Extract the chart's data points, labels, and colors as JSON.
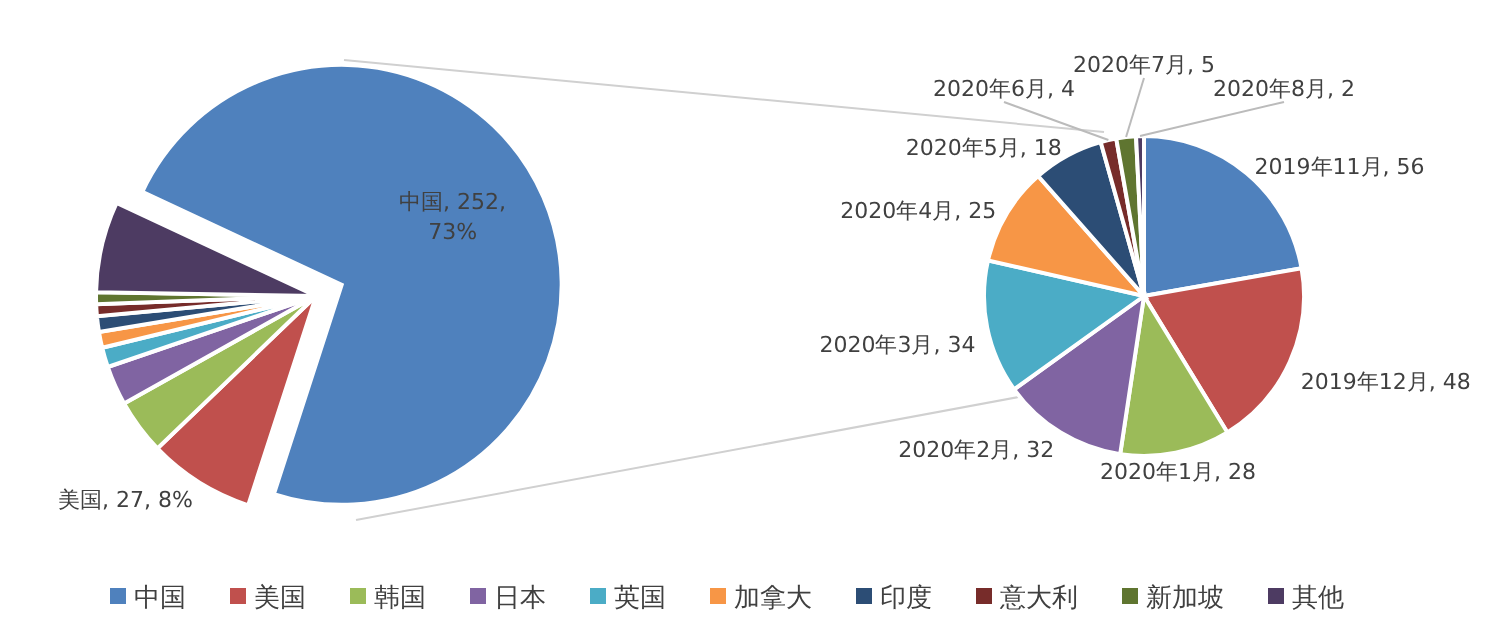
{
  "chart_data": [
    {
      "type": "pie",
      "categories": [
        "中国",
        "美国",
        "韩国",
        "日本",
        "英国",
        "加拿大",
        "印度",
        "意大利",
        "新加坡",
        "其他"
      ],
      "values": [
        252,
        27,
        14,
        10,
        5,
        4,
        4,
        3,
        3,
        23
      ],
      "colors": [
        "#4f81bd",
        "#c0504d",
        "#9bbb59",
        "#8064a2",
        "#4bacc6",
        "#f79646",
        "#2c4d75",
        "#772c2a",
        "#5f7530",
        "#4d3b62"
      ],
      "value_labels": [
        ", 252, 73%",
        ", 27, 8%",
        null,
        null,
        null,
        null,
        null,
        null,
        null,
        null
      ],
      "legend": "bottom"
    },
    {
      "type": "pie",
      "categories": [
        "2019年11月",
        "2019年12月",
        "2020年1月",
        "2020年2月",
        "2020年3月",
        "2020年4月",
        "2020年5月",
        "2020年6月",
        "2020年7月",
        "2020年8月"
      ],
      "values": [
        56,
        48,
        28,
        32,
        34,
        25,
        18,
        4,
        5,
        2
      ],
      "colors": [
        "#4f81bd",
        "#c0504d",
        "#9bbb59",
        "#8064a2",
        "#4bacc6",
        "#f79646",
        "#2c4d75",
        "#772c2a",
        "#5f7530",
        "#4d3b62"
      ],
      "value_labels": [
        ", 56",
        ", 48",
        ", 28",
        ", 32",
        ", 34",
        ", 25",
        ", 18",
        ", 4",
        ", 5",
        ", 2"
      ]
    }
  ]
}
